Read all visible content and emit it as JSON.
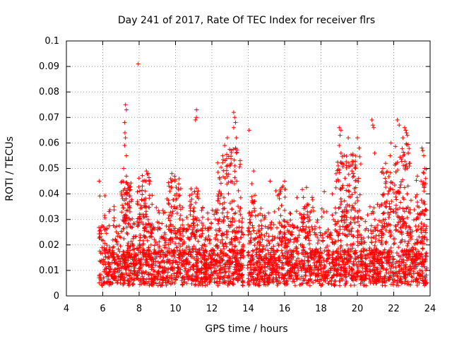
{
  "chart_data": {
    "type": "scatter",
    "title": "Day 241 of 2017, Rate Of TEC Index for receiver flrs",
    "xlabel": "GPS time / hours",
    "ylabel": "ROTI / TECUs",
    "xlim": [
      4,
      24
    ],
    "ylim": [
      0,
      0.1
    ],
    "xticks": [
      "4",
      "6",
      "8",
      "10",
      "12",
      "14",
      "16",
      "18",
      "20",
      "22",
      "24"
    ],
    "yticks": [
      "0",
      "0.01",
      "0.02",
      "0.03",
      "0.04",
      "0.05",
      "0.06",
      "0.07",
      "0.08",
      "0.09",
      "0.1"
    ],
    "grid": true,
    "marker": "+",
    "color": "#ff0000",
    "data_gap": [
      13.75,
      13.95
    ],
    "series": [
      {
        "points": [
          [
            5.8,
            0.045
          ],
          [
            7.25,
            0.075
          ],
          [
            7.3,
            0.073
          ],
          [
            7.2,
            0.068
          ],
          [
            7.22,
            0.064
          ],
          [
            7.25,
            0.062
          ],
          [
            7.2,
            0.059
          ],
          [
            7.3,
            0.055
          ],
          [
            7.15,
            0.05
          ],
          [
            7.3,
            0.047
          ],
          [
            7.95,
            0.091
          ],
          [
            8.4,
            0.049
          ],
          [
            8.5,
            0.048
          ],
          [
            8.2,
            0.045
          ],
          [
            9.8,
            0.048
          ],
          [
            9.95,
            0.047
          ],
          [
            10.2,
            0.046
          ],
          [
            10.85,
            0.042
          ],
          [
            11.15,
            0.073
          ],
          [
            11.1,
            0.069
          ],
          [
            11.15,
            0.07
          ],
          [
            12.85,
            0.062
          ],
          [
            12.7,
            0.059
          ],
          [
            12.6,
            0.055
          ],
          [
            13.2,
            0.072
          ],
          [
            13.25,
            0.07
          ],
          [
            13.3,
            0.068
          ],
          [
            13.2,
            0.066
          ],
          [
            13.35,
            0.062
          ],
          [
            13.3,
            0.058
          ],
          [
            14.05,
            0.065
          ],
          [
            14.3,
            0.049
          ],
          [
            14.2,
            0.044
          ],
          [
            15.2,
            0.045
          ],
          [
            16.0,
            0.045
          ],
          [
            15.9,
            0.043
          ],
          [
            17.25,
            0.036
          ],
          [
            17.1,
            0.035
          ],
          [
            18.05,
            0.031
          ],
          [
            18.3,
            0.033
          ],
          [
            18.85,
            0.045
          ],
          [
            18.95,
            0.051
          ],
          [
            19.0,
            0.066
          ],
          [
            19.1,
            0.065
          ],
          [
            19.05,
            0.063
          ],
          [
            19.0,
            0.059
          ],
          [
            19.1,
            0.056
          ],
          [
            19.2,
            0.052
          ],
          [
            19.5,
            0.062
          ],
          [
            19.6,
            0.051
          ],
          [
            19.7,
            0.049
          ],
          [
            19.8,
            0.047
          ],
          [
            19.9,
            0.05
          ],
          [
            20.0,
            0.062
          ],
          [
            20.1,
            0.058
          ],
          [
            20.8,
            0.069
          ],
          [
            20.85,
            0.067
          ],
          [
            20.9,
            0.066
          ],
          [
            20.95,
            0.056
          ],
          [
            21.4,
            0.05
          ],
          [
            21.55,
            0.052
          ],
          [
            21.8,
            0.055
          ],
          [
            21.85,
            0.06
          ],
          [
            22.2,
            0.069
          ],
          [
            22.3,
            0.067
          ],
          [
            22.5,
            0.062
          ],
          [
            22.6,
            0.066
          ],
          [
            22.65,
            0.065
          ],
          [
            22.7,
            0.064
          ],
          [
            22.75,
            0.063
          ],
          [
            22.8,
            0.056
          ],
          [
            22.85,
            0.052
          ],
          [
            23.3,
            0.047
          ],
          [
            23.55,
            0.058
          ],
          [
            23.6,
            0.057
          ],
          [
            23.65,
            0.055
          ],
          [
            23.7,
            0.05
          ],
          [
            23.5,
            0.045
          ]
        ]
      }
    ]
  }
}
